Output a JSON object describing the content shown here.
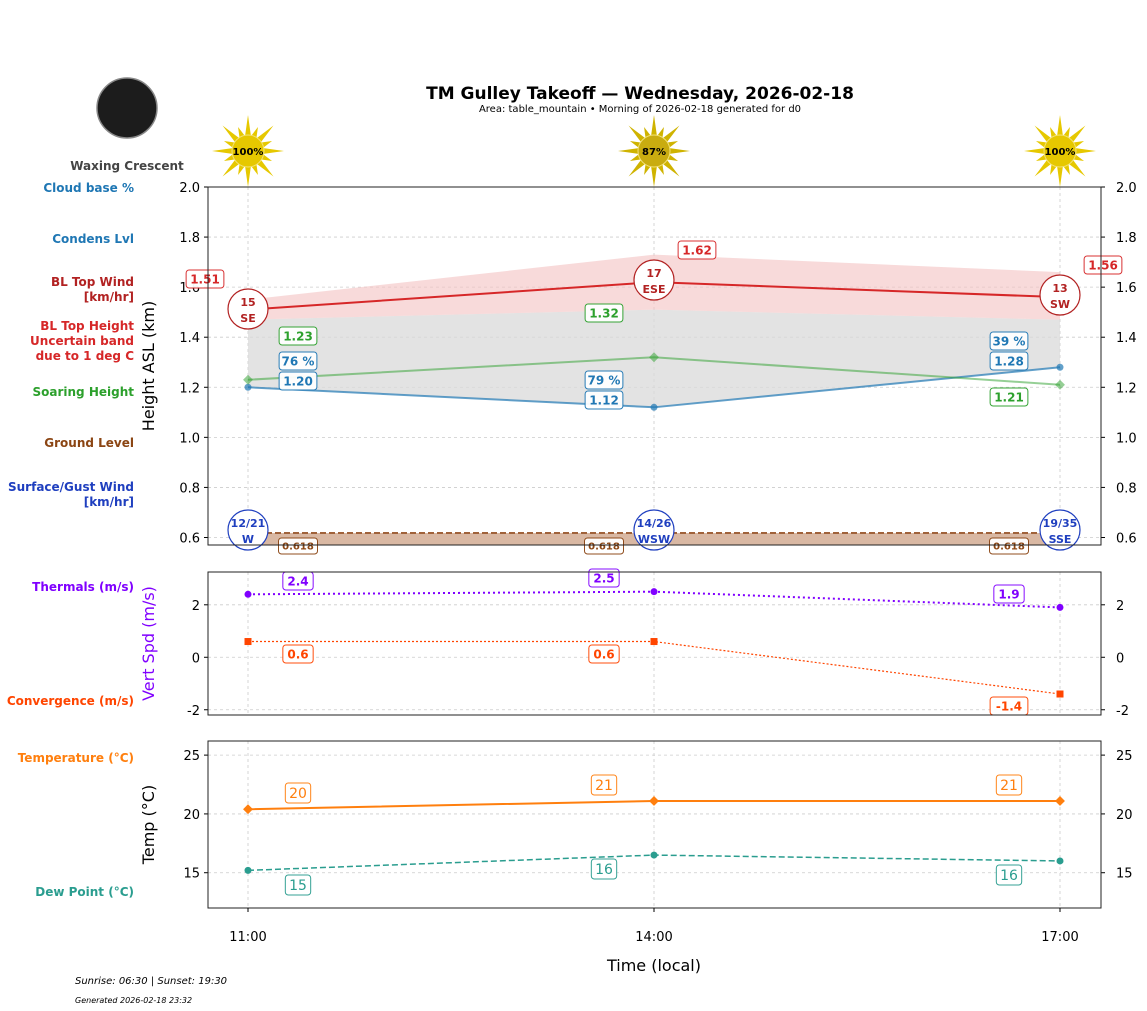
{
  "title": "TM Gulley Takeoff — Wednesday, 2026-02-18",
  "subtitle": "Area: table_mountain • Morning of 2026-02-18 generated for d0",
  "moon": {
    "phase": "Waxing Crescent"
  },
  "footer": {
    "sun_times": "Sunrise: 06:30 | Sunset: 19:30",
    "generated": "Generated 2026-02-18 23:32"
  },
  "colors": {
    "bl_top": "#d62728",
    "bl_wind": "#b22222",
    "condens": "#1f77b4",
    "soaring": "#2ca02c",
    "ground": "#8b4513",
    "surface_wind": "#1f3fbf",
    "thermals": "#8000ff",
    "convergence": "#ff4500",
    "temperature": "#ff7f0e",
    "dew_point": "#2a9d8f",
    "sun": "#e6c800"
  },
  "chart_data": [
    {
      "type": "line",
      "ylabel": "Height ASL (km)",
      "ylim": [
        0.57,
        2.0
      ],
      "yticks": [
        "0.6",
        "0.8",
        "1.0",
        "1.2",
        "1.4",
        "1.6",
        "1.8",
        "2.0"
      ],
      "x": [
        "11:00",
        "14:00",
        "17:00"
      ],
      "grid": true,
      "sun_percent": [
        "100%",
        "87%",
        "100%"
      ],
      "side_labels": {
        "cloud_base": "Cloud base %",
        "condens": "Condens Lvl",
        "bl_wind": "BL Top Wind\n[km/hr]",
        "bl_top": "BL Top Height\nUncertain band\ndue to 1 deg C",
        "soaring": "Soaring Height",
        "ground": "Ground Level",
        "surface_wind": "Surface/Gust Wind\n[km/hr]"
      },
      "bl_top": [
        1.51,
        1.62,
        1.56
      ],
      "bl_band_upper": [
        1.55,
        1.73,
        1.66
      ],
      "bl_band_lower": [
        1.47,
        1.51,
        1.47
      ],
      "condens_lvl": [
        1.2,
        1.12,
        1.28
      ],
      "cloud_base_pct": [
        "76 %",
        "79 %",
        "39 %"
      ],
      "soaring_height": [
        1.23,
        1.32,
        1.21
      ],
      "ground_level": [
        0.618,
        0.618,
        0.618
      ],
      "bl_wind": [
        {
          "speed": "15",
          "dir": "SE"
        },
        {
          "speed": "17",
          "dir": "ESE"
        },
        {
          "speed": "13",
          "dir": "SW"
        }
      ],
      "surface_wind": [
        {
          "speed": "12/21",
          "dir": "W"
        },
        {
          "speed": "14/26",
          "dir": "WSW"
        },
        {
          "speed": "19/35",
          "dir": "SSE"
        }
      ]
    },
    {
      "type": "line",
      "ylabel": "Vert Spd (m/s)",
      "ylim": [
        -2.2,
        3.25
      ],
      "yticks": [
        "-2",
        "0",
        "2"
      ],
      "grid": true,
      "series": [
        {
          "name": "Thermals (m/s)",
          "values": [
            2.4,
            2.5,
            1.9
          ]
        },
        {
          "name": "Convergence (m/s)",
          "values": [
            0.6,
            0.6,
            -1.4
          ]
        }
      ]
    },
    {
      "type": "line",
      "ylabel": "Temp (°C)",
      "xlabel": "Time (local)",
      "ylim": [
        12.0,
        26.2
      ],
      "yticks": [
        "15",
        "20",
        "25"
      ],
      "grid": true,
      "series": [
        {
          "name": "Temperature (°C)",
          "values": [
            20.4,
            21.1,
            21.1
          ],
          "labels": [
            "20",
            "21",
            "21"
          ]
        },
        {
          "name": "Dew Point (°C)",
          "values": [
            15.2,
            16.5,
            16.0
          ],
          "labels": [
            "15",
            "16",
            "16"
          ]
        }
      ]
    }
  ]
}
